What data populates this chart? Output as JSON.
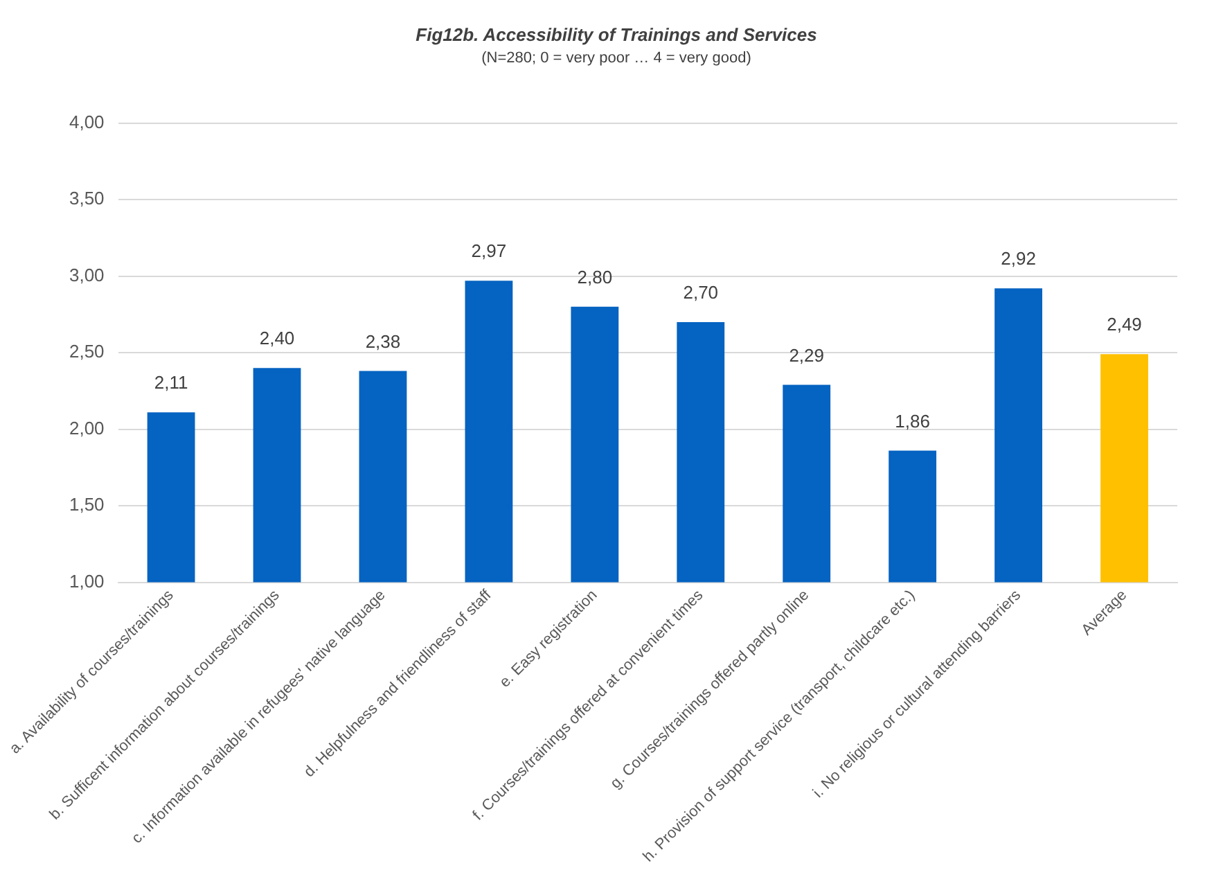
{
  "chart_data": {
    "type": "bar",
    "title": "Fig12b. Accessibility of Trainings and Services",
    "subtitle": "(N=280; 0 = very poor … 4 = very good)",
    "categories": [
      "a. Availability of courses/trainings",
      "b. Sufficent information about courses/trainings",
      "c. Information available in refugees' native language",
      "d. Helpfulness and friendliness of staff",
      "e. Easy registration",
      "f. Courses/trainings offered at convenient times",
      "g. Courses/trainings offered partly online",
      "h. Provision of support service (transport, childcare etc.)",
      "i. No religious or cultural attending barriers",
      "Average"
    ],
    "values": [
      2.11,
      2.4,
      2.38,
      2.97,
      2.8,
      2.7,
      2.29,
      1.86,
      2.92,
      2.49
    ],
    "value_labels": [
      "2,11",
      "2,40",
      "2,38",
      "2,97",
      "2,80",
      "2,70",
      "2,29",
      "1,86",
      "2,92",
      "2,49"
    ],
    "colors": [
      "#0563c1",
      "#0563c1",
      "#0563c1",
      "#0563c1",
      "#0563c1",
      "#0563c1",
      "#0563c1",
      "#0563c1",
      "#0563c1",
      "#ffc000"
    ],
    "ylim": [
      1,
      4
    ],
    "yticks": [
      {
        "value": 1,
        "label": "1,00"
      },
      {
        "value": 1.5,
        "label": "1,50"
      },
      {
        "value": 2,
        "label": "2,00"
      },
      {
        "value": 2.5,
        "label": "2,50"
      },
      {
        "value": 3,
        "label": "3,00"
      },
      {
        "value": 3.5,
        "label": "3,50"
      },
      {
        "value": 4,
        "label": "4,00"
      }
    ],
    "grid": "y",
    "legend": false
  }
}
